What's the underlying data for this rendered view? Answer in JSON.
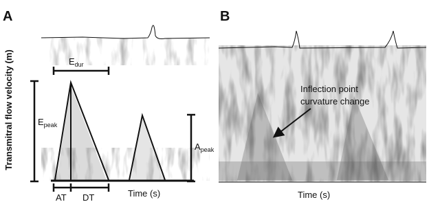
{
  "panels": [
    {
      "label": "A",
      "y_axis_label": "Transmitral flow velocity (m)",
      "annotations": {
        "e_dur": {
          "main": "E",
          "sub": "dur"
        },
        "e_peak": {
          "main": "E",
          "sub": "peak"
        },
        "a_peak": {
          "main": "A",
          "sub": "peak"
        },
        "at": "AT",
        "dt": "DT"
      },
      "x_axis_label": "Time (s)"
    },
    {
      "label": "B",
      "annotation": [
        "Inflection point",
        "curvature change"
      ],
      "x_axis_label": "Time (s)"
    }
  ]
}
